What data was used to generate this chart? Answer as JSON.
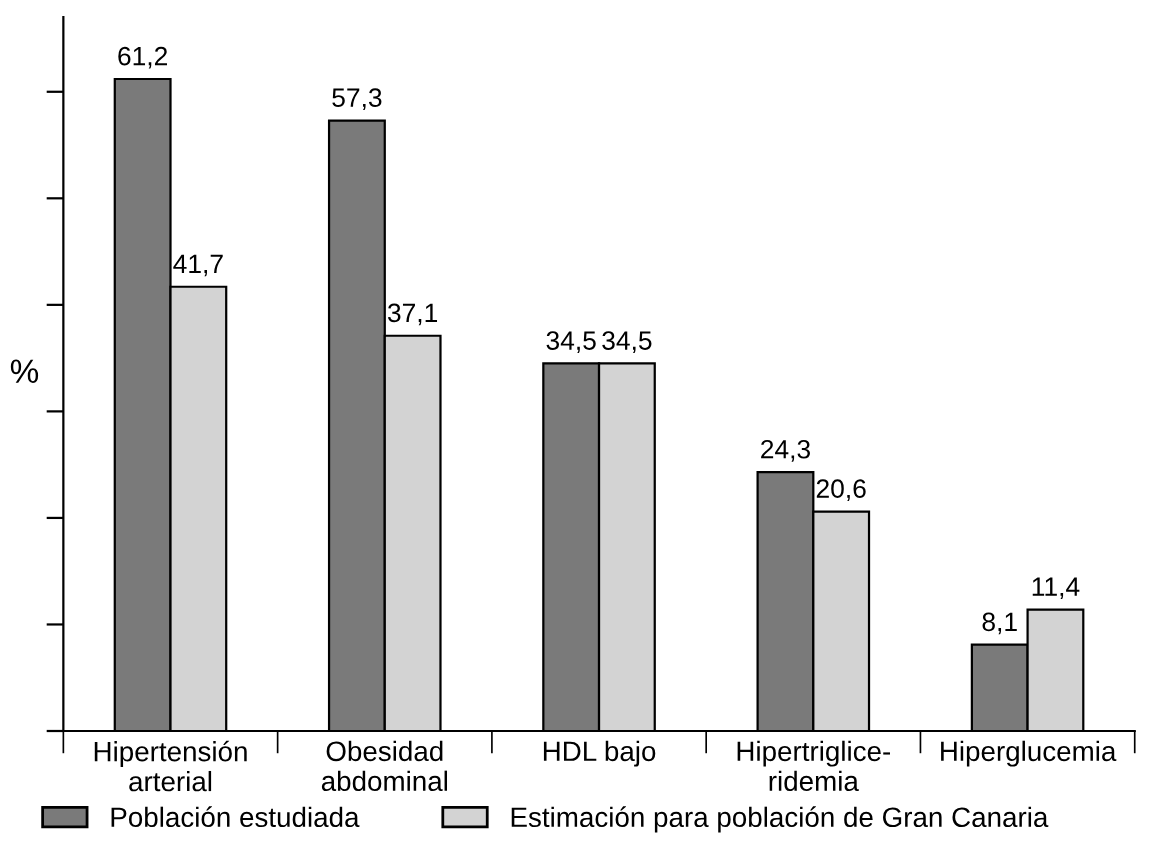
{
  "chart_data": {
    "type": "bar",
    "ylabel": "%",
    "categories": [
      "Hipertensión\narterial",
      "Obesidad\nabdominal",
      "HDL bajo",
      "Hipertriglice-\nridemia",
      "Hiperglucemia"
    ],
    "series": [
      {
        "name": "Población estudiada",
        "color": "#7a7a7a",
        "values": [
          61.2,
          57.3,
          34.5,
          24.3,
          8.1
        ],
        "value_labels": [
          "61,2",
          "57,3",
          "34,5",
          "24,3",
          "8,1"
        ]
      },
      {
        "name": "Estimación para población de Gran Canaria",
        "color": "#d3d3d3",
        "values": [
          41.7,
          37.1,
          34.5,
          20.6,
          11.4
        ],
        "value_labels": [
          "41,7",
          "37,1",
          "34,5",
          "20,6",
          "11,4"
        ]
      }
    ],
    "ylim": [
      0,
      67
    ],
    "yticks": [
      {
        "value": 0,
        "label": null
      },
      {
        "value": 10,
        "label": null
      },
      {
        "value": 20,
        "label": null
      },
      {
        "value": 30,
        "label": null
      },
      {
        "value": 40,
        "label": null
      },
      {
        "value": 50,
        "label": null
      },
      {
        "value": 60,
        "label": null
      }
    ],
    "tick_labels": "x",
    "grid": false,
    "legend": "bottom"
  }
}
